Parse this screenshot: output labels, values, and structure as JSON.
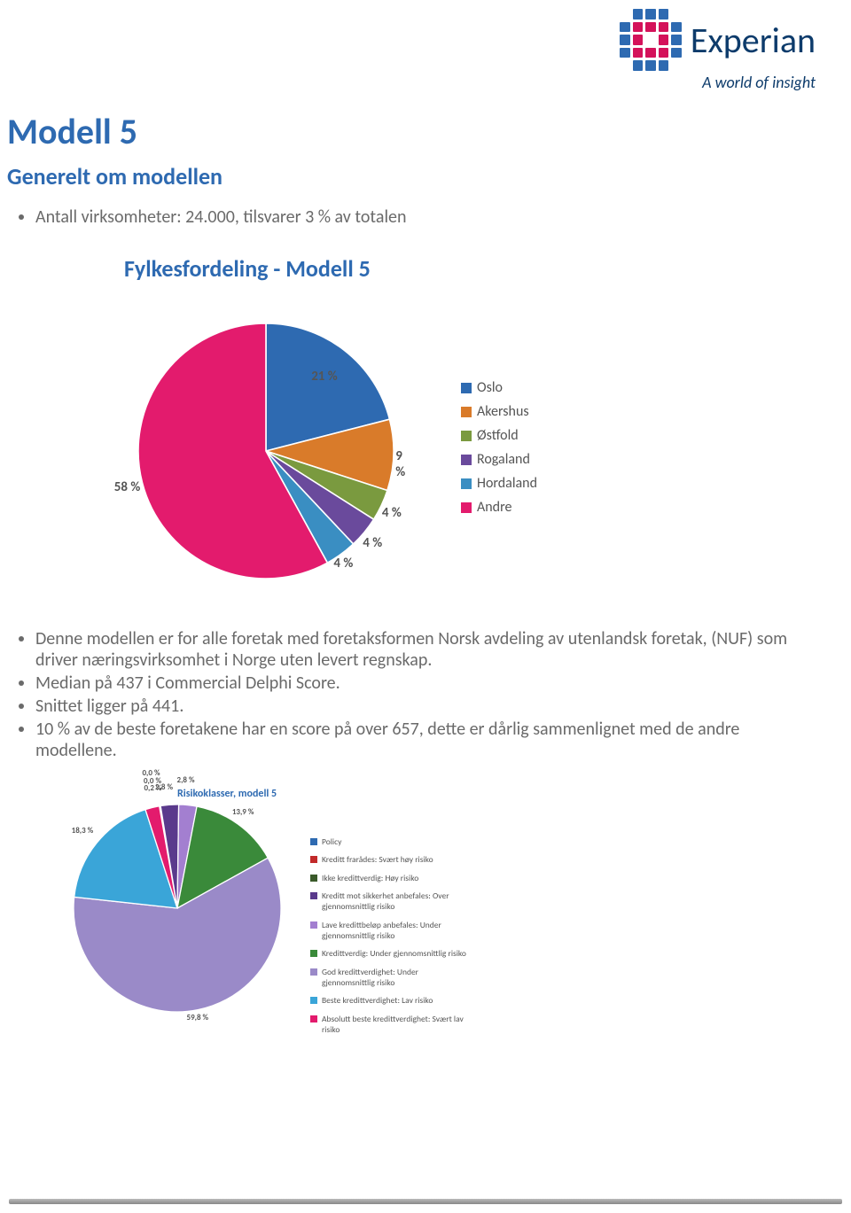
{
  "logo": {
    "brand": "Experian",
    "tagline": "A world of insight",
    "dot_colors": {
      "pink": "#d4125a",
      "blue": "#2e6ab1"
    }
  },
  "title": "Modell 5",
  "subtitle": "Generelt om modellen",
  "intro_bullet": "Antall virksomheter: 24.000, tilsvarer 3 % av totalen",
  "chart1": {
    "type": "pie",
    "title": "Fylkesfordeling - Modell 5",
    "background_color": "#ffffff",
    "label_fontsize": 15,
    "title_fontsize": 26,
    "title_color": "#2e6ab1",
    "legend_fontsize": 16,
    "legend_position": "right",
    "slices": [
      {
        "label": "Oslo",
        "value": 21,
        "display": "21 %",
        "color": "#2e6ab1"
      },
      {
        "label": "Akershus",
        "value": 9,
        "display": "9 %",
        "color": "#d97b2a"
      },
      {
        "label": "Østfold",
        "value": 4,
        "display": "4 %",
        "color": "#7a9a3f"
      },
      {
        "label": "Rogaland",
        "value": 4,
        "display": "4 %",
        "color": "#6a4a9c"
      },
      {
        "label": "Hordaland",
        "value": 4,
        "display": "4 %",
        "color": "#3a8ec2"
      },
      {
        "label": "Andre",
        "value": 58,
        "display": "58 %",
        "color": "#e31b6d"
      }
    ]
  },
  "body_bullets": [
    "Denne modellen er for alle foretak med foretaksformen Norsk avdeling av utenlandsk foretak, (NUF) som driver næringsvirksomhet i Norge uten levert regnskap.",
    "Median på 437 i Commercial Delphi Score.",
    "Snittet ligger på 441.",
    "10 % av de beste foretakene har en score på over 657, dette er dårlig sammenlignet med de andre modellene."
  ],
  "chart2": {
    "type": "pie",
    "title": "Risikoklasser, modell 5",
    "background_color": "#ffffff",
    "title_fontsize": 12,
    "title_color": "#2e6ab1",
    "label_fontsize": 9,
    "legend_fontsize": 9.5,
    "legend_position": "right",
    "slices": [
      {
        "label": "Policy",
        "value": 0.2,
        "display": "0,2 %",
        "color": "#2e6ab1"
      },
      {
        "label": "Kreditt frarådes: Svært høy risiko",
        "value": 0.0,
        "display": "0,0 %",
        "color": "#c22a2a"
      },
      {
        "label": "Ikke kredittverdig: Høy risiko",
        "value": 0.0,
        "display": "0,0 %",
        "color": "#3a5a2a"
      },
      {
        "label": "Kreditt mot sikkerhet anbefales: Over gjennomsnittlig risiko",
        "value": 2.8,
        "display": "2,8 %",
        "color": "#5a3a8c"
      },
      {
        "label": "Lave kredittbeløp anbefales: Under gjennomsnittlig risiko",
        "value": 2.8,
        "display": "2,8 %",
        "color": "#a37fd0"
      },
      {
        "label": "Kredittverdig: Under gjennomsnittlig risiko",
        "value": 13.9,
        "display": "13,9 %",
        "color": "#3a8a3a"
      },
      {
        "label": "God kredittverdighet: Under gjennomsnittlig risiko",
        "value": 59.8,
        "display": "59,8 %",
        "color": "#9a8ac8"
      },
      {
        "label": "Beste kredittverdighet: Lav risiko",
        "value": 18.3,
        "display": "18,3 %",
        "color": "#3aa5d8"
      },
      {
        "label": "Absolutt beste kredittverdighet: Svært lav risiko",
        "value": 2.2,
        "display": "",
        "color": "#e31b6d"
      }
    ]
  }
}
